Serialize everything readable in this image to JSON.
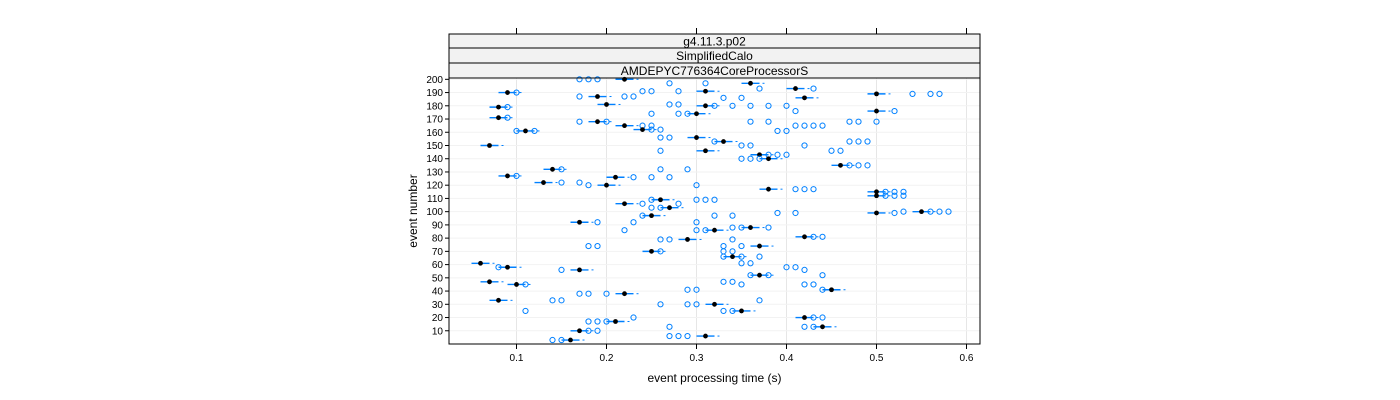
{
  "chart_data": {
    "type": "scatter",
    "panels": [
      "g4.11.3.p02",
      "SimplifiedCalo",
      "AMDEPYC776364CoreProcessorS"
    ],
    "xlabel": "event processing time (s)",
    "ylabel": "event number",
    "xlim": [
      0.025,
      0.615
    ],
    "ylim": [
      0,
      201
    ],
    "x_ticks": [
      0.1,
      0.2,
      0.3,
      0.4,
      0.5,
      0.6
    ],
    "y_ticks": [
      10,
      20,
      30,
      40,
      50,
      60,
      70,
      80,
      90,
      100,
      110,
      120,
      130,
      140,
      150,
      160,
      170,
      180,
      190,
      200
    ],
    "grid": true,
    "colors": {
      "median": "#000000",
      "box": "#0080ff",
      "outlier": "#0080ff",
      "panel_border": "#000000",
      "strip_bg": "#f2f2f2"
    },
    "events": [
      {
        "event": 200,
        "median": 0.22,
        "outliers": [
          0.17,
          0.18,
          0.19
        ]
      },
      {
        "event": 197,
        "median": 0.36,
        "outliers": [
          0.27,
          0.31
        ]
      },
      {
        "event": 193,
        "median": 0.41,
        "outliers": [
          0.43,
          0.37
        ]
      },
      {
        "event": 191,
        "median": 0.31,
        "outliers": [
          0.28,
          0.25,
          0.24
        ]
      },
      {
        "event": 190,
        "median": 0.09,
        "outliers": [
          0.1
        ]
      },
      {
        "event": 189,
        "median": 0.5,
        "outliers": [
          0.54,
          0.56,
          0.57
        ]
      },
      {
        "event": 187,
        "median": 0.19,
        "outliers": [
          0.17,
          0.22,
          0.23
        ]
      },
      {
        "event": 186,
        "median": 0.42,
        "outliers": [
          0.35,
          0.33
        ]
      },
      {
        "event": 181,
        "median": 0.2,
        "outliers": [
          0.28,
          0.27
        ]
      },
      {
        "event": 180,
        "median": 0.31,
        "outliers": [
          0.32,
          0.34,
          0.36,
          0.38,
          0.4
        ]
      },
      {
        "event": 179,
        "median": 0.08,
        "outliers": [
          0.09
        ]
      },
      {
        "event": 176,
        "median": 0.5,
        "outliers": [
          0.52,
          0.41
        ]
      },
      {
        "event": 174,
        "median": 0.3,
        "outliers": [
          0.28,
          0.29,
          0.25
        ]
      },
      {
        "event": 171,
        "median": 0.08,
        "outliers": [
          0.09
        ]
      },
      {
        "event": 168,
        "median": 0.19,
        "outliers": [
          0.17,
          0.2,
          0.36,
          0.38,
          0.47,
          0.48,
          0.5
        ]
      },
      {
        "event": 165,
        "median": 0.22,
        "outliers": [
          0.24,
          0.25,
          0.41,
          0.42,
          0.43,
          0.44
        ]
      },
      {
        "event": 162,
        "median": 0.24,
        "outliers": [
          0.25,
          0.26
        ]
      },
      {
        "event": 161,
        "median": 0.11,
        "outliers": [
          0.1,
          0.12,
          0.39,
          0.4
        ]
      },
      {
        "event": 156,
        "median": 0.3,
        "outliers": [
          0.27,
          0.26
        ]
      },
      {
        "event": 153,
        "median": 0.33,
        "outliers": [
          0.32,
          0.47,
          0.48,
          0.49
        ]
      },
      {
        "event": 150,
        "median": 0.07,
        "outliers": [
          0.35,
          0.36,
          0.42
        ]
      },
      {
        "event": 146,
        "median": 0.31,
        "outliers": [
          0.26,
          0.45,
          0.46
        ]
      },
      {
        "event": 143,
        "median": 0.37,
        "outliers": [
          0.38,
          0.39,
          0.4
        ]
      },
      {
        "event": 140,
        "median": 0.38,
        "outliers": [
          0.37,
          0.36,
          0.35
        ]
      },
      {
        "event": 135,
        "median": 0.46,
        "outliers": [
          0.47,
          0.48,
          0.49
        ]
      },
      {
        "event": 132,
        "median": 0.14,
        "outliers": [
          0.15,
          0.26,
          0.29
        ]
      },
      {
        "event": 127,
        "median": 0.09,
        "outliers": [
          0.1
        ]
      },
      {
        "event": 126,
        "median": 0.21,
        "outliers": [
          0.23,
          0.25,
          0.27
        ]
      },
      {
        "event": 122,
        "median": 0.13,
        "outliers": [
          0.15,
          0.17
        ]
      },
      {
        "event": 120,
        "median": 0.2,
        "outliers": [
          0.18,
          0.3
        ]
      },
      {
        "event": 117,
        "median": 0.38,
        "outliers": [
          0.41,
          0.42,
          0.43
        ]
      },
      {
        "event": 115,
        "median": 0.5,
        "outliers": [
          0.51,
          0.52,
          0.53
        ]
      },
      {
        "event": 112,
        "median": 0.5,
        "outliers": [
          0.51,
          0.52,
          0.53
        ]
      },
      {
        "event": 109,
        "median": 0.26,
        "outliers": [
          0.25,
          0.3,
          0.31,
          0.32
        ]
      },
      {
        "event": 106,
        "median": 0.22,
        "outliers": [
          0.24,
          0.28
        ]
      },
      {
        "event": 103,
        "median": 0.27,
        "outliers": [
          0.25,
          0.26
        ]
      },
      {
        "event": 100,
        "median": 0.55,
        "outliers": [
          0.56,
          0.57,
          0.58,
          0.53
        ]
      },
      {
        "event": 99,
        "median": 0.5,
        "outliers": [
          0.52,
          0.39,
          0.41
        ]
      },
      {
        "event": 97,
        "median": 0.25,
        "outliers": [
          0.24,
          0.32,
          0.34
        ]
      },
      {
        "event": 92,
        "median": 0.17,
        "outliers": [
          0.19,
          0.23,
          0.3
        ]
      },
      {
        "event": 88,
        "median": 0.36,
        "outliers": [
          0.35,
          0.34,
          0.38
        ]
      },
      {
        "event": 86,
        "median": 0.32,
        "outliers": [
          0.31,
          0.3,
          0.22
        ]
      },
      {
        "event": 81,
        "median": 0.42,
        "outliers": [
          0.43,
          0.44
        ]
      },
      {
        "event": 79,
        "median": 0.29,
        "outliers": [
          0.26,
          0.27,
          0.34
        ]
      },
      {
        "event": 74,
        "median": 0.37,
        "outliers": [
          0.35,
          0.33,
          0.18,
          0.19
        ]
      },
      {
        "event": 70,
        "median": 0.25,
        "outliers": [
          0.26,
          0.33,
          0.34
        ]
      },
      {
        "event": 66,
        "median": 0.34,
        "outliers": [
          0.33,
          0.35,
          0.37
        ]
      },
      {
        "event": 61,
        "median": 0.06,
        "outliers": [
          0.35,
          0.36
        ]
      },
      {
        "event": 58,
        "median": 0.09,
        "outliers": [
          0.08,
          0.4,
          0.41
        ]
      },
      {
        "event": 56,
        "median": 0.17,
        "outliers": [
          0.15,
          0.42
        ]
      },
      {
        "event": 52,
        "median": 0.37,
        "outliers": [
          0.36,
          0.38,
          0.44
        ]
      },
      {
        "event": 47,
        "median": 0.07,
        "outliers": [
          0.33,
          0.34
        ]
      },
      {
        "event": 45,
        "median": 0.1,
        "outliers": [
          0.11,
          0.35,
          0.42,
          0.43
        ]
      },
      {
        "event": 41,
        "median": 0.45,
        "outliers": [
          0.44,
          0.29,
          0.3
        ]
      },
      {
        "event": 38,
        "median": 0.22,
        "outliers": [
          0.2,
          0.18,
          0.17
        ]
      },
      {
        "event": 33,
        "median": 0.08,
        "outliers": [
          0.14,
          0.15,
          0.37
        ]
      },
      {
        "event": 30,
        "median": 0.32,
        "outliers": [
          0.3,
          0.29,
          0.26
        ]
      },
      {
        "event": 25,
        "median": 0.35,
        "outliers": [
          0.34,
          0.33,
          0.11
        ]
      },
      {
        "event": 20,
        "median": 0.42,
        "outliers": [
          0.43,
          0.44,
          0.23
        ]
      },
      {
        "event": 17,
        "median": 0.21,
        "outliers": [
          0.2,
          0.19,
          0.18
        ]
      },
      {
        "event": 13,
        "median": 0.44,
        "outliers": [
          0.43,
          0.42,
          0.27
        ]
      },
      {
        "event": 10,
        "median": 0.17,
        "outliers": [
          0.18,
          0.19
        ]
      },
      {
        "event": 6,
        "median": 0.31,
        "outliers": [
          0.29,
          0.28,
          0.27
        ]
      },
      {
        "event": 3,
        "median": 0.16,
        "outliers": [
          0.14,
          0.15
        ]
      }
    ]
  }
}
